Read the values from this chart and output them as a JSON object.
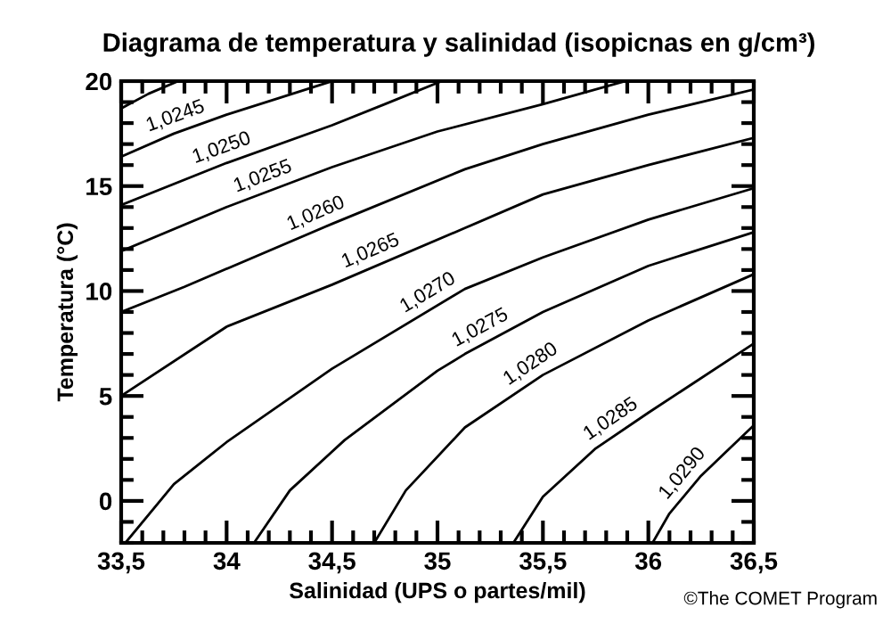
{
  "chart_data": {
    "type": "line",
    "title": "Diagrama de temperatura y salinidad (isopicnas en g/cm³)",
    "xlabel": "Salinidad (UPS o partes/mil)",
    "ylabel": "Temperatura (°C)",
    "xlim": [
      33.5,
      36.5
    ],
    "ylim": [
      -2,
      20
    ],
    "xticks": [
      {
        "value": 33.5,
        "label": "33,5"
      },
      {
        "value": 33.6,
        "label": null
      },
      {
        "value": 33.7,
        "label": null
      },
      {
        "value": 33.8,
        "label": null
      },
      {
        "value": 33.9,
        "label": null
      },
      {
        "value": 34,
        "label": "34"
      },
      {
        "value": 34.1,
        "label": null
      },
      {
        "value": 34.2,
        "label": null
      },
      {
        "value": 34.3,
        "label": null
      },
      {
        "value": 34.4,
        "label": null
      },
      {
        "value": 34.5,
        "label": "34,5"
      },
      {
        "value": 34.6,
        "label": null
      },
      {
        "value": 34.7,
        "label": null
      },
      {
        "value": 34.8,
        "label": null
      },
      {
        "value": 34.9,
        "label": null
      },
      {
        "value": 35,
        "label": "35"
      },
      {
        "value": 35.1,
        "label": null
      },
      {
        "value": 35.2,
        "label": null
      },
      {
        "value": 35.3,
        "label": null
      },
      {
        "value": 35.4,
        "label": null
      },
      {
        "value": 35.5,
        "label": "35,5"
      },
      {
        "value": 35.6,
        "label": null
      },
      {
        "value": 35.7,
        "label": null
      },
      {
        "value": 35.8,
        "label": null
      },
      {
        "value": 35.9,
        "label": null
      },
      {
        "value": 36,
        "label": "36"
      },
      {
        "value": 36.1,
        "label": null
      },
      {
        "value": 36.2,
        "label": null
      },
      {
        "value": 36.3,
        "label": null
      },
      {
        "value": 36.4,
        "label": null
      },
      {
        "value": 36.5,
        "label": "36,5"
      }
    ],
    "yticks": [
      {
        "value": -2,
        "label": null
      },
      {
        "value": -1,
        "label": null
      },
      0,
      {
        "value": 1,
        "label": null
      },
      {
        "value": 2,
        "label": null
      },
      {
        "value": 3,
        "label": null
      },
      {
        "value": 4,
        "label": null
      },
      5,
      {
        "value": 6,
        "label": null
      },
      {
        "value": 7,
        "label": null
      },
      {
        "value": 8,
        "label": null
      },
      {
        "value": 9,
        "label": null
      },
      10,
      {
        "value": 11,
        "label": null
      },
      {
        "value": 12,
        "label": null
      },
      {
        "value": 13,
        "label": null
      },
      {
        "value": 14,
        "label": null
      },
      15,
      {
        "value": 16,
        "label": null
      },
      {
        "value": 17,
        "label": null
      },
      {
        "value": 18,
        "label": null
      },
      {
        "value": 19,
        "label": null
      },
      20
    ],
    "series": [
      {
        "color": "#000000",
        "x": [
          33.5,
          33.63,
          33.77
        ],
        "values": [
          18.7,
          19.4,
          20
        ]
      },
      {
        "name": "1,0245",
        "color": "#000000",
        "x": [
          33.5,
          33.75,
          34.0,
          34.25,
          34.5
        ],
        "values": [
          16.4,
          17.5,
          18.4,
          19.2,
          20
        ]
      },
      {
        "name": "1,0250",
        "color": "#000000",
        "x": [
          33.5,
          34.0,
          34.5,
          34.75,
          35.02
        ],
        "values": [
          14.1,
          16.1,
          17.9,
          18.9,
          20
        ]
      },
      {
        "name": "1,0255",
        "color": "#000000",
        "x": [
          33.5,
          34.0,
          34.5,
          35.0,
          35.5,
          35.89
        ],
        "values": [
          11.9,
          14.0,
          15.9,
          17.6,
          18.9,
          20
        ]
      },
      {
        "name": "1,0260",
        "color": "#000000",
        "x": [
          33.5,
          33.8,
          34.5,
          35.13,
          35.5,
          36.0,
          36.5
        ],
        "values": [
          9.0,
          10.2,
          13.2,
          15.8,
          17.0,
          18.4,
          19.6
        ]
      },
      {
        "name": "1,0265",
        "color": "#000000",
        "x": [
          33.5,
          34.0,
          34.5,
          35.13,
          35.5,
          36.0,
          36.5
        ],
        "values": [
          5.0,
          8.3,
          10.3,
          13.0,
          14.6,
          16.0,
          17.3
        ]
      },
      {
        "name": "1,0270",
        "color": "#000000",
        "x": [
          33.52,
          33.75,
          34.0,
          34.5,
          35.13,
          35.5,
          36.0,
          36.5
        ],
        "values": [
          -2,
          0.8,
          2.8,
          6.3,
          10.1,
          11.6,
          13.4,
          14.9
        ]
      },
      {
        "name": "1,0275",
        "color": "#000000",
        "x": [
          34.13,
          34.3,
          34.56,
          35.0,
          35.13,
          35.5,
          36.0,
          36.5
        ],
        "values": [
          -2,
          0.5,
          2.9,
          6.2,
          7.0,
          9.0,
          11.2,
          12.8
        ]
      },
      {
        "name": "1,0280",
        "color": "#000000",
        "x": [
          34.7,
          34.85,
          35.13,
          35.5,
          36.0,
          36.5
        ],
        "values": [
          -2,
          0.5,
          3.5,
          6.0,
          8.6,
          10.8
        ]
      },
      {
        "name": "1,0285",
        "color": "#000000",
        "x": [
          35.36,
          35.5,
          35.75,
          36.0,
          36.5
        ],
        "values": [
          -2,
          0.2,
          2.5,
          4.2,
          7.5
        ]
      },
      {
        "name": "1,0290",
        "color": "#000000",
        "x": [
          36.02,
          36.1,
          36.25,
          36.5
        ],
        "values": [
          -2,
          -0.6,
          1.2,
          3.6
        ]
      }
    ],
    "annotations": [
      "©The COMET Program"
    ]
  }
}
